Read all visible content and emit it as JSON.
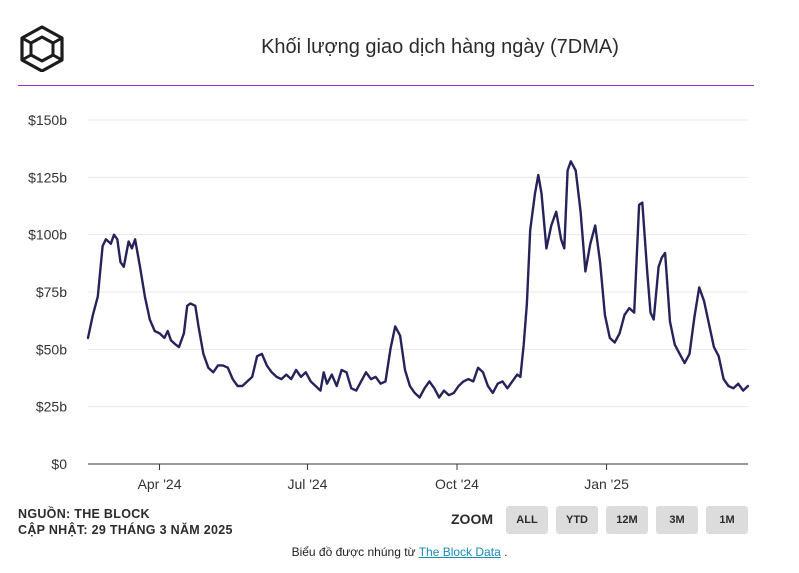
{
  "header": {
    "title": "Khối lượng giao dịch hàng ngày (7DMA)"
  },
  "colors": {
    "accent": "#8b2fc9",
    "line": "#26235a",
    "grid": "#e8e8e8",
    "button_bg": "#dcdcdc",
    "link": "#1a8ab8"
  },
  "source": {
    "line1": "NGUỒN: THE BLOCK",
    "line2": "CẬP NHẬT: 29 THÁNG 3 NĂM 2025"
  },
  "zoom": {
    "label": "ZOOM",
    "buttons": [
      "ALL",
      "YTD",
      "12M",
      "3M",
      "1M"
    ]
  },
  "footer": {
    "prefix": "Biểu đồ được nhúng từ ",
    "link_text": "The Block Data",
    "suffix": " ."
  },
  "chart_data": {
    "type": "line",
    "title": "Khối lượng giao dịch hàng ngày (7DMA)",
    "y_ticks": [
      "$0",
      "$25b",
      "$50b",
      "$75b",
      "$100b",
      "$125b",
      "$150b"
    ],
    "ylim": [
      0,
      150
    ],
    "x_ticks": [
      {
        "label": "Apr '24",
        "date": "2024-04-01"
      },
      {
        "label": "Jul '24",
        "date": "2024-07-01"
      },
      {
        "label": "Oct '24",
        "date": "2024-10-01"
      },
      {
        "label": "Jan '25",
        "date": "2025-01-01"
      }
    ],
    "xlim": [
      "2024-02-17",
      "2025-03-29"
    ],
    "grid": true,
    "series": [
      {
        "unit": "billion USD",
        "points": [
          [
            "2024-02-17",
            55
          ],
          [
            "2024-02-20",
            65
          ],
          [
            "2024-02-23",
            73
          ],
          [
            "2024-02-26",
            95
          ],
          [
            "2024-02-28",
            98
          ],
          [
            "2024-03-02",
            96
          ],
          [
            "2024-03-04",
            100
          ],
          [
            "2024-03-06",
            98
          ],
          [
            "2024-03-08",
            88
          ],
          [
            "2024-03-10",
            86
          ],
          [
            "2024-03-13",
            97
          ],
          [
            "2024-03-15",
            94
          ],
          [
            "2024-03-17",
            98
          ],
          [
            "2024-03-20",
            86
          ],
          [
            "2024-03-23",
            73
          ],
          [
            "2024-03-26",
            63
          ],
          [
            "2024-03-29",
            58
          ],
          [
            "2024-04-01",
            57
          ],
          [
            "2024-04-04",
            55
          ],
          [
            "2024-04-06",
            58
          ],
          [
            "2024-04-08",
            54
          ],
          [
            "2024-04-11",
            52
          ],
          [
            "2024-04-13",
            51
          ],
          [
            "2024-04-16",
            57
          ],
          [
            "2024-04-18",
            69
          ],
          [
            "2024-04-20",
            70
          ],
          [
            "2024-04-23",
            69
          ],
          [
            "2024-04-25",
            60
          ],
          [
            "2024-04-28",
            48
          ],
          [
            "2024-05-01",
            42
          ],
          [
            "2024-05-04",
            40
          ],
          [
            "2024-05-07",
            43
          ],
          [
            "2024-05-10",
            43
          ],
          [
            "2024-05-13",
            42
          ],
          [
            "2024-05-16",
            37
          ],
          [
            "2024-05-19",
            34
          ],
          [
            "2024-05-22",
            34
          ],
          [
            "2024-05-25",
            36
          ],
          [
            "2024-05-28",
            38
          ],
          [
            "2024-05-31",
            47
          ],
          [
            "2024-06-03",
            48
          ],
          [
            "2024-06-06",
            43
          ],
          [
            "2024-06-09",
            40
          ],
          [
            "2024-06-12",
            38
          ],
          [
            "2024-06-15",
            37
          ],
          [
            "2024-06-18",
            39
          ],
          [
            "2024-06-21",
            37
          ],
          [
            "2024-06-24",
            41
          ],
          [
            "2024-06-27",
            38
          ],
          [
            "2024-06-30",
            40
          ],
          [
            "2024-07-03",
            36
          ],
          [
            "2024-07-06",
            34
          ],
          [
            "2024-07-09",
            32
          ],
          [
            "2024-07-11",
            40
          ],
          [
            "2024-07-13",
            35
          ],
          [
            "2024-07-16",
            39
          ],
          [
            "2024-07-19",
            34
          ],
          [
            "2024-07-22",
            41
          ],
          [
            "2024-07-25",
            40
          ],
          [
            "2024-07-28",
            33
          ],
          [
            "2024-07-31",
            32
          ],
          [
            "2024-08-03",
            36
          ],
          [
            "2024-08-06",
            40
          ],
          [
            "2024-08-09",
            37
          ],
          [
            "2024-08-12",
            38
          ],
          [
            "2024-08-15",
            35
          ],
          [
            "2024-08-18",
            36
          ],
          [
            "2024-08-21",
            50
          ],
          [
            "2024-08-24",
            60
          ],
          [
            "2024-08-27",
            56
          ],
          [
            "2024-08-30",
            41
          ],
          [
            "2024-09-02",
            34
          ],
          [
            "2024-09-05",
            31
          ],
          [
            "2024-09-08",
            29
          ],
          [
            "2024-09-11",
            33
          ],
          [
            "2024-09-14",
            36
          ],
          [
            "2024-09-17",
            33
          ],
          [
            "2024-09-20",
            29
          ],
          [
            "2024-09-23",
            32
          ],
          [
            "2024-09-26",
            30
          ],
          [
            "2024-09-29",
            31
          ],
          [
            "2024-10-02",
            34
          ],
          [
            "2024-10-05",
            36
          ],
          [
            "2024-10-08",
            37
          ],
          [
            "2024-10-11",
            36
          ],
          [
            "2024-10-14",
            42
          ],
          [
            "2024-10-17",
            40
          ],
          [
            "2024-10-20",
            34
          ],
          [
            "2024-10-23",
            31
          ],
          [
            "2024-10-26",
            35
          ],
          [
            "2024-10-29",
            36
          ],
          [
            "2024-11-01",
            33
          ],
          [
            "2024-11-04",
            36
          ],
          [
            "2024-11-07",
            39
          ],
          [
            "2024-11-09",
            38
          ],
          [
            "2024-11-11",
            52
          ],
          [
            "2024-11-13",
            70
          ],
          [
            "2024-11-15",
            102
          ],
          [
            "2024-11-18",
            118
          ],
          [
            "2024-11-20",
            126
          ],
          [
            "2024-11-22",
            118
          ],
          [
            "2024-11-25",
            94
          ],
          [
            "2024-11-28",
            104
          ],
          [
            "2024-12-01",
            110
          ],
          [
            "2024-12-04",
            98
          ],
          [
            "2024-12-06",
            94
          ],
          [
            "2024-12-08",
            128
          ],
          [
            "2024-12-10",
            132
          ],
          [
            "2024-12-13",
            128
          ],
          [
            "2024-12-16",
            110
          ],
          [
            "2024-12-19",
            84
          ],
          [
            "2024-12-22",
            96
          ],
          [
            "2024-12-25",
            104
          ],
          [
            "2024-12-28",
            88
          ],
          [
            "2024-12-31",
            65
          ],
          [
            "2025-01-03",
            55
          ],
          [
            "2025-01-06",
            53
          ],
          [
            "2025-01-09",
            57
          ],
          [
            "2025-01-12",
            65
          ],
          [
            "2025-01-15",
            68
          ],
          [
            "2025-01-18",
            66
          ],
          [
            "2025-01-21",
            113
          ],
          [
            "2025-01-23",
            114
          ],
          [
            "2025-01-26",
            84
          ],
          [
            "2025-01-28",
            66
          ],
          [
            "2025-01-30",
            63
          ],
          [
            "2025-02-02",
            86
          ],
          [
            "2025-02-04",
            90
          ],
          [
            "2025-02-06",
            92
          ],
          [
            "2025-02-09",
            62
          ],
          [
            "2025-02-12",
            52
          ],
          [
            "2025-02-15",
            48
          ],
          [
            "2025-02-18",
            44
          ],
          [
            "2025-02-21",
            48
          ],
          [
            "2025-02-24",
            64
          ],
          [
            "2025-02-27",
            77
          ],
          [
            "2025-03-02",
            71
          ],
          [
            "2025-03-05",
            61
          ],
          [
            "2025-03-08",
            51
          ],
          [
            "2025-03-11",
            47
          ],
          [
            "2025-03-14",
            37
          ],
          [
            "2025-03-17",
            34
          ],
          [
            "2025-03-20",
            33
          ],
          [
            "2025-03-23",
            35
          ],
          [
            "2025-03-26",
            32
          ],
          [
            "2025-03-29",
            34
          ]
        ]
      }
    ]
  }
}
